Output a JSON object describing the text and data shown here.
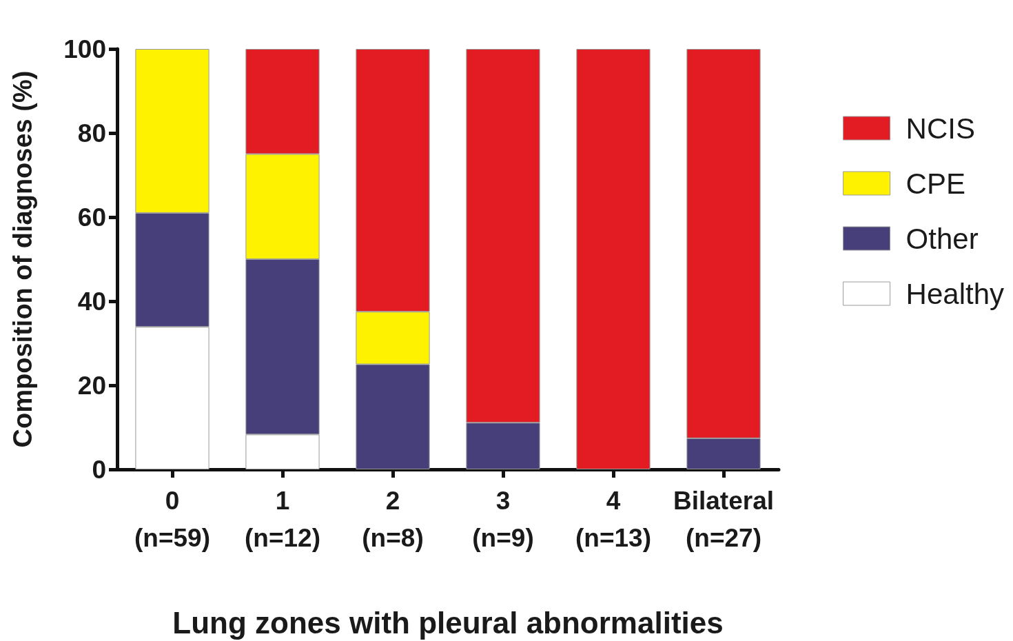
{
  "chart_data": {
    "type": "bar",
    "stacked": true,
    "xlabel": "Lung zones with pleural abnormalities",
    "ylabel": "Composition of diagnoses (%)",
    "categories": [
      "0\n(n=59)",
      "1\n(n=12)",
      "2\n(n=8)",
      "3\n(n=9)",
      "4\n(n=13)",
      "Bilateral\n(n=27)"
    ],
    "series": [
      {
        "name": "Healthy",
        "color": "#ffffff",
        "values": [
          33.9,
          8.3,
          0,
          0,
          0,
          0
        ]
      },
      {
        "name": "Other",
        "color": "#473f7a",
        "values": [
          27.1,
          41.7,
          25,
          11.1,
          0,
          7.4
        ]
      },
      {
        "name": "CPE",
        "color": "#fff200",
        "values": [
          39.0,
          25,
          12.5,
          0,
          0,
          0
        ]
      },
      {
        "name": "NCIS",
        "color": "#e31b23",
        "values": [
          0,
          25,
          62.5,
          88.9,
          100,
          92.6
        ]
      }
    ],
    "ylim": [
      0,
      100
    ],
    "yticks": [
      0,
      20,
      40,
      60,
      80,
      100
    ],
    "grid": false,
    "legend": "right"
  }
}
